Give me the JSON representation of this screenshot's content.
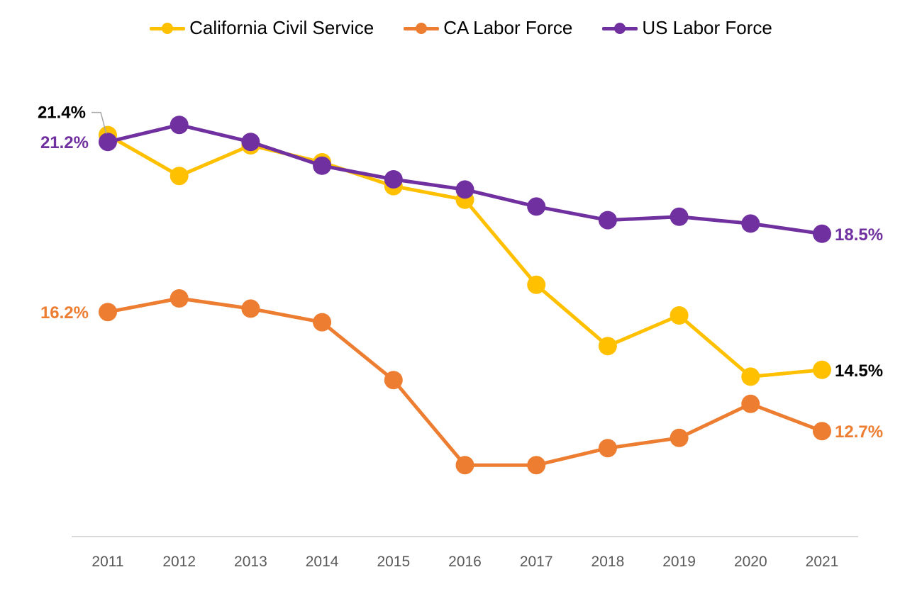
{
  "chart_data": {
    "type": "line",
    "title": "",
    "xlabel": "",
    "ylabel": "",
    "ylim": [
      9.6,
      23.6
    ],
    "grid": false,
    "legend_position": "top-center",
    "categories": [
      "2011",
      "2012",
      "2013",
      "2014",
      "2015",
      "2016",
      "2017",
      "2018",
      "2019",
      "2020",
      "2021"
    ],
    "series": [
      {
        "name": "California Civil Service",
        "color": "#FFC000",
        "values": [
          21.4,
          20.2,
          21.1,
          20.6,
          19.9,
          19.5,
          17.0,
          15.2,
          16.1,
          14.3,
          14.5
        ],
        "labels": [
          {
            "index": 0,
            "text": "21.4%",
            "color": "#000000",
            "side": "left",
            "leader": true
          },
          {
            "index": 10,
            "text": "14.5%",
            "color": "#000000",
            "side": "right"
          }
        ]
      },
      {
        "name": "CA Labor Force",
        "color": "#ED7D31",
        "values": [
          16.2,
          16.6,
          16.3,
          15.9,
          14.2,
          11.7,
          11.7,
          12.2,
          12.5,
          13.5,
          12.7
        ],
        "labels": [
          {
            "index": 0,
            "text": "16.2%",
            "color": "#ED7D31",
            "side": "left"
          },
          {
            "index": 10,
            "text": "12.7%",
            "color": "#ED7D31",
            "side": "right"
          }
        ]
      },
      {
        "name": "US Labor Force",
        "color": "#7030A0",
        "values": [
          21.2,
          21.7,
          21.2,
          20.5,
          20.1,
          19.8,
          19.3,
          18.9,
          19.0,
          18.8,
          18.5
        ],
        "labels": [
          {
            "index": 0,
            "text": "21.2%",
            "color": "#7030A0",
            "side": "left"
          },
          {
            "index": 10,
            "text": "18.5%",
            "color": "#7030A0",
            "side": "right"
          }
        ]
      }
    ]
  }
}
